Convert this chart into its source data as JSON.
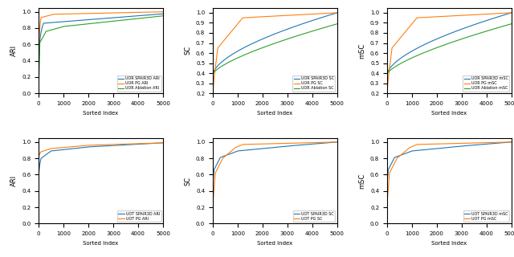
{
  "colors": {
    "spair3d": "#1f77b4",
    "pg": "#ff7f0e",
    "ablation": "#2ca02c"
  },
  "subplots": [
    {
      "row": 0,
      "col": 0,
      "ylabel": "ARI",
      "xlabel": "Sorted Index",
      "ylim": [
        0.0,
        1.05
      ],
      "yticks": [
        0.0,
        0.2,
        0.4,
        0.6,
        0.8,
        1.0
      ],
      "prefix": "UOR",
      "metric": "ARI",
      "has_ablation": true
    },
    {
      "row": 0,
      "col": 1,
      "ylabel": "SC",
      "xlabel": "Sorted Index",
      "ylim": [
        0.2,
        1.05
      ],
      "yticks": [
        0.2,
        0.3,
        0.4,
        0.5,
        0.6,
        0.7,
        0.8,
        0.9,
        1.0
      ],
      "prefix": "UOR",
      "metric": "SC",
      "has_ablation": true
    },
    {
      "row": 0,
      "col": 2,
      "ylabel": "mSC",
      "xlabel": "Sorted Index",
      "ylim": [
        0.2,
        1.05
      ],
      "yticks": [
        0.2,
        0.3,
        0.4,
        0.5,
        0.6,
        0.7,
        0.8,
        0.9,
        1.0
      ],
      "prefix": "UOR",
      "metric": "mSC",
      "has_ablation": true
    },
    {
      "row": 1,
      "col": 0,
      "ylabel": "ARI",
      "xlabel": "Sorted Index",
      "ylim": [
        0.0,
        1.05
      ],
      "yticks": [
        0.0,
        0.2,
        0.4,
        0.6,
        0.8,
        1.0
      ],
      "prefix": "UOT",
      "metric": "ARI",
      "has_ablation": false
    },
    {
      "row": 1,
      "col": 1,
      "ylabel": "SC",
      "xlabel": "Sorted Index",
      "ylim": [
        0.0,
        1.05
      ],
      "yticks": [
        0.0,
        0.2,
        0.4,
        0.6,
        0.8,
        1.0
      ],
      "prefix": "UOT",
      "metric": "SC",
      "has_ablation": false
    },
    {
      "row": 1,
      "col": 2,
      "ylabel": "mSC",
      "xlabel": "Sorted Index",
      "ylim": [
        0.0,
        1.05
      ],
      "yticks": [
        0.0,
        0.2,
        0.4,
        0.6,
        0.8,
        1.0
      ],
      "prefix": "UOT",
      "metric": "mSC",
      "has_ablation": false
    }
  ]
}
